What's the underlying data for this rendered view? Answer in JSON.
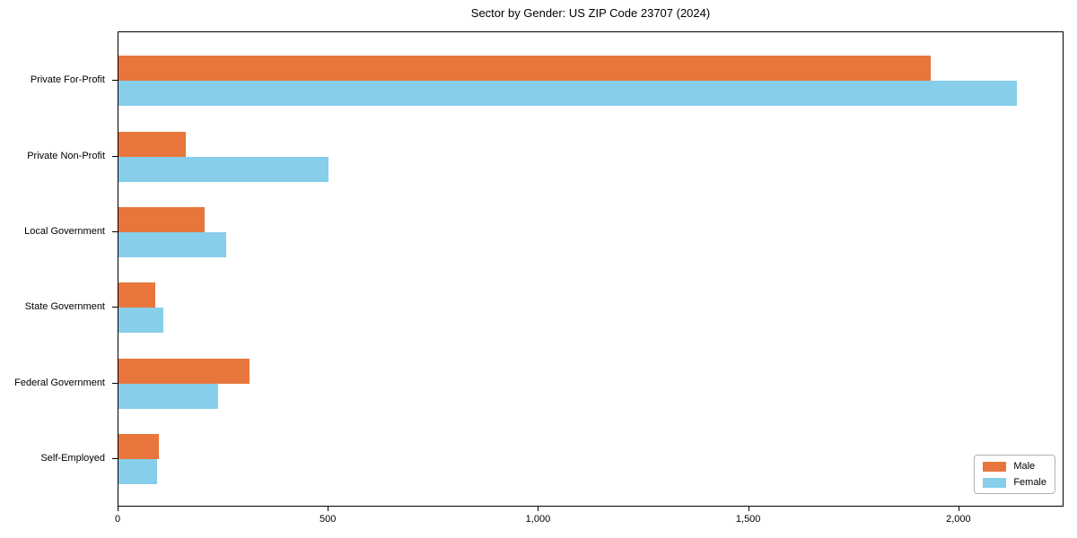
{
  "chart_data": {
    "type": "bar",
    "orientation": "horizontal",
    "title": "Sector by Gender: US ZIP Code 23707 (2024)",
    "categories": [
      "Private For-Profit",
      "Private Non-Profit",
      "Local Government",
      "State Government",
      "Federal Government",
      "Self-Employed"
    ],
    "series": [
      {
        "name": "Male",
        "color": "#E8763C",
        "values": [
          1935,
          160,
          205,
          88,
          312,
          96
        ]
      },
      {
        "name": "Female",
        "color": "#87CEEA",
        "values": [
          2140,
          500,
          257,
          108,
          238,
          91
        ]
      }
    ],
    "xlabel": "",
    "ylabel": "",
    "xlim": [
      0,
      2250
    ],
    "xticks": [
      0,
      500,
      1000,
      1500,
      2000
    ],
    "xtick_labels": [
      "0",
      "500",
      "1,000",
      "1,500",
      "2,000"
    ],
    "legend": {
      "position": "lower-right"
    },
    "grid": false,
    "axis_color": "#000000",
    "text_color": "#000000"
  }
}
